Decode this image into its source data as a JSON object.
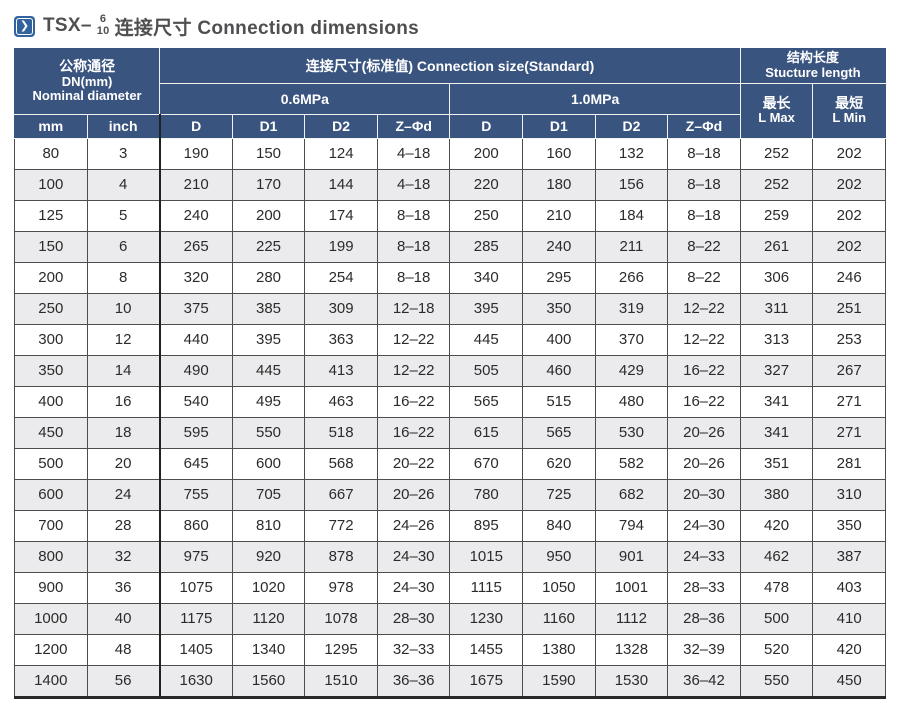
{
  "title": {
    "model_prefix": "TSX–",
    "fraction_top": "6",
    "fraction_bottom": "10",
    "text": "连接尺寸 Connection dimensions",
    "icon": "chevron-right-icon",
    "icon_glyph": "❯"
  },
  "colors": {
    "header_blue": "#3a5480",
    "icon_blue": "#33639f",
    "row_stripe": "#ebebed",
    "border_dark": "#4d4d4d",
    "title_gray": "#4f4f52"
  },
  "table": {
    "header": {
      "nominal_cn": "公称通径",
      "nominal_sub": "DN(mm)",
      "nominal_en": "Nominal diameter",
      "connection": "连接尺寸(标准值) Connection size(Standard)",
      "pressure_06": "0.6MPa",
      "pressure_10": "1.0MPa",
      "structure_cn": "结构长度",
      "structure_en": "Stucture length",
      "lmax_cn": "最长",
      "lmax_en": "L Max",
      "lmin_cn": "最短",
      "lmin_en": "L Min",
      "unit_mm": "mm",
      "unit_inch": "inch",
      "dims": [
        "D",
        "D1",
        "D2",
        "Z–Φd"
      ]
    },
    "rows": [
      [
        "80",
        "3",
        "190",
        "150",
        "124",
        "4–18",
        "200",
        "160",
        "132",
        "8–18",
        "252",
        "202"
      ],
      [
        "100",
        "4",
        "210",
        "170",
        "144",
        "4–18",
        "220",
        "180",
        "156",
        "8–18",
        "252",
        "202"
      ],
      [
        "125",
        "5",
        "240",
        "200",
        "174",
        "8–18",
        "250",
        "210",
        "184",
        "8–18",
        "259",
        "202"
      ],
      [
        "150",
        "6",
        "265",
        "225",
        "199",
        "8–18",
        "285",
        "240",
        "211",
        "8–22",
        "261",
        "202"
      ],
      [
        "200",
        "8",
        "320",
        "280",
        "254",
        "8–18",
        "340",
        "295",
        "266",
        "8–22",
        "306",
        "246"
      ],
      [
        "250",
        "10",
        "375",
        "385",
        "309",
        "12–18",
        "395",
        "350",
        "319",
        "12–22",
        "311",
        "251"
      ],
      [
        "300",
        "12",
        "440",
        "395",
        "363",
        "12–22",
        "445",
        "400",
        "370",
        "12–22",
        "313",
        "253"
      ],
      [
        "350",
        "14",
        "490",
        "445",
        "413",
        "12–22",
        "505",
        "460",
        "429",
        "16–22",
        "327",
        "267"
      ],
      [
        "400",
        "16",
        "540",
        "495",
        "463",
        "16–22",
        "565",
        "515",
        "480",
        "16–22",
        "341",
        "271"
      ],
      [
        "450",
        "18",
        "595",
        "550",
        "518",
        "16–22",
        "615",
        "565",
        "530",
        "20–26",
        "341",
        "271"
      ],
      [
        "500",
        "20",
        "645",
        "600",
        "568",
        "20–22",
        "670",
        "620",
        "582",
        "20–26",
        "351",
        "281"
      ],
      [
        "600",
        "24",
        "755",
        "705",
        "667",
        "20–26",
        "780",
        "725",
        "682",
        "20–30",
        "380",
        "310"
      ],
      [
        "700",
        "28",
        "860",
        "810",
        "772",
        "24–26",
        "895",
        "840",
        "794",
        "24–30",
        "420",
        "350"
      ],
      [
        "800",
        "32",
        "975",
        "920",
        "878",
        "24–30",
        "1015",
        "950",
        "901",
        "24–33",
        "462",
        "387"
      ],
      [
        "900",
        "36",
        "1075",
        "1020",
        "978",
        "24–30",
        "1115",
        "1050",
        "1001",
        "28–33",
        "478",
        "403"
      ],
      [
        "1000",
        "40",
        "1175",
        "1120",
        "1078",
        "28–30",
        "1230",
        "1160",
        "1112",
        "28–36",
        "500",
        "410"
      ],
      [
        "1200",
        "48",
        "1405",
        "1340",
        "1295",
        "32–33",
        "1455",
        "1380",
        "1328",
        "32–39",
        "520",
        "420"
      ],
      [
        "1400",
        "56",
        "1630",
        "1560",
        "1510",
        "36–36",
        "1675",
        "1590",
        "1530",
        "36–42",
        "550",
        "450"
      ]
    ]
  }
}
